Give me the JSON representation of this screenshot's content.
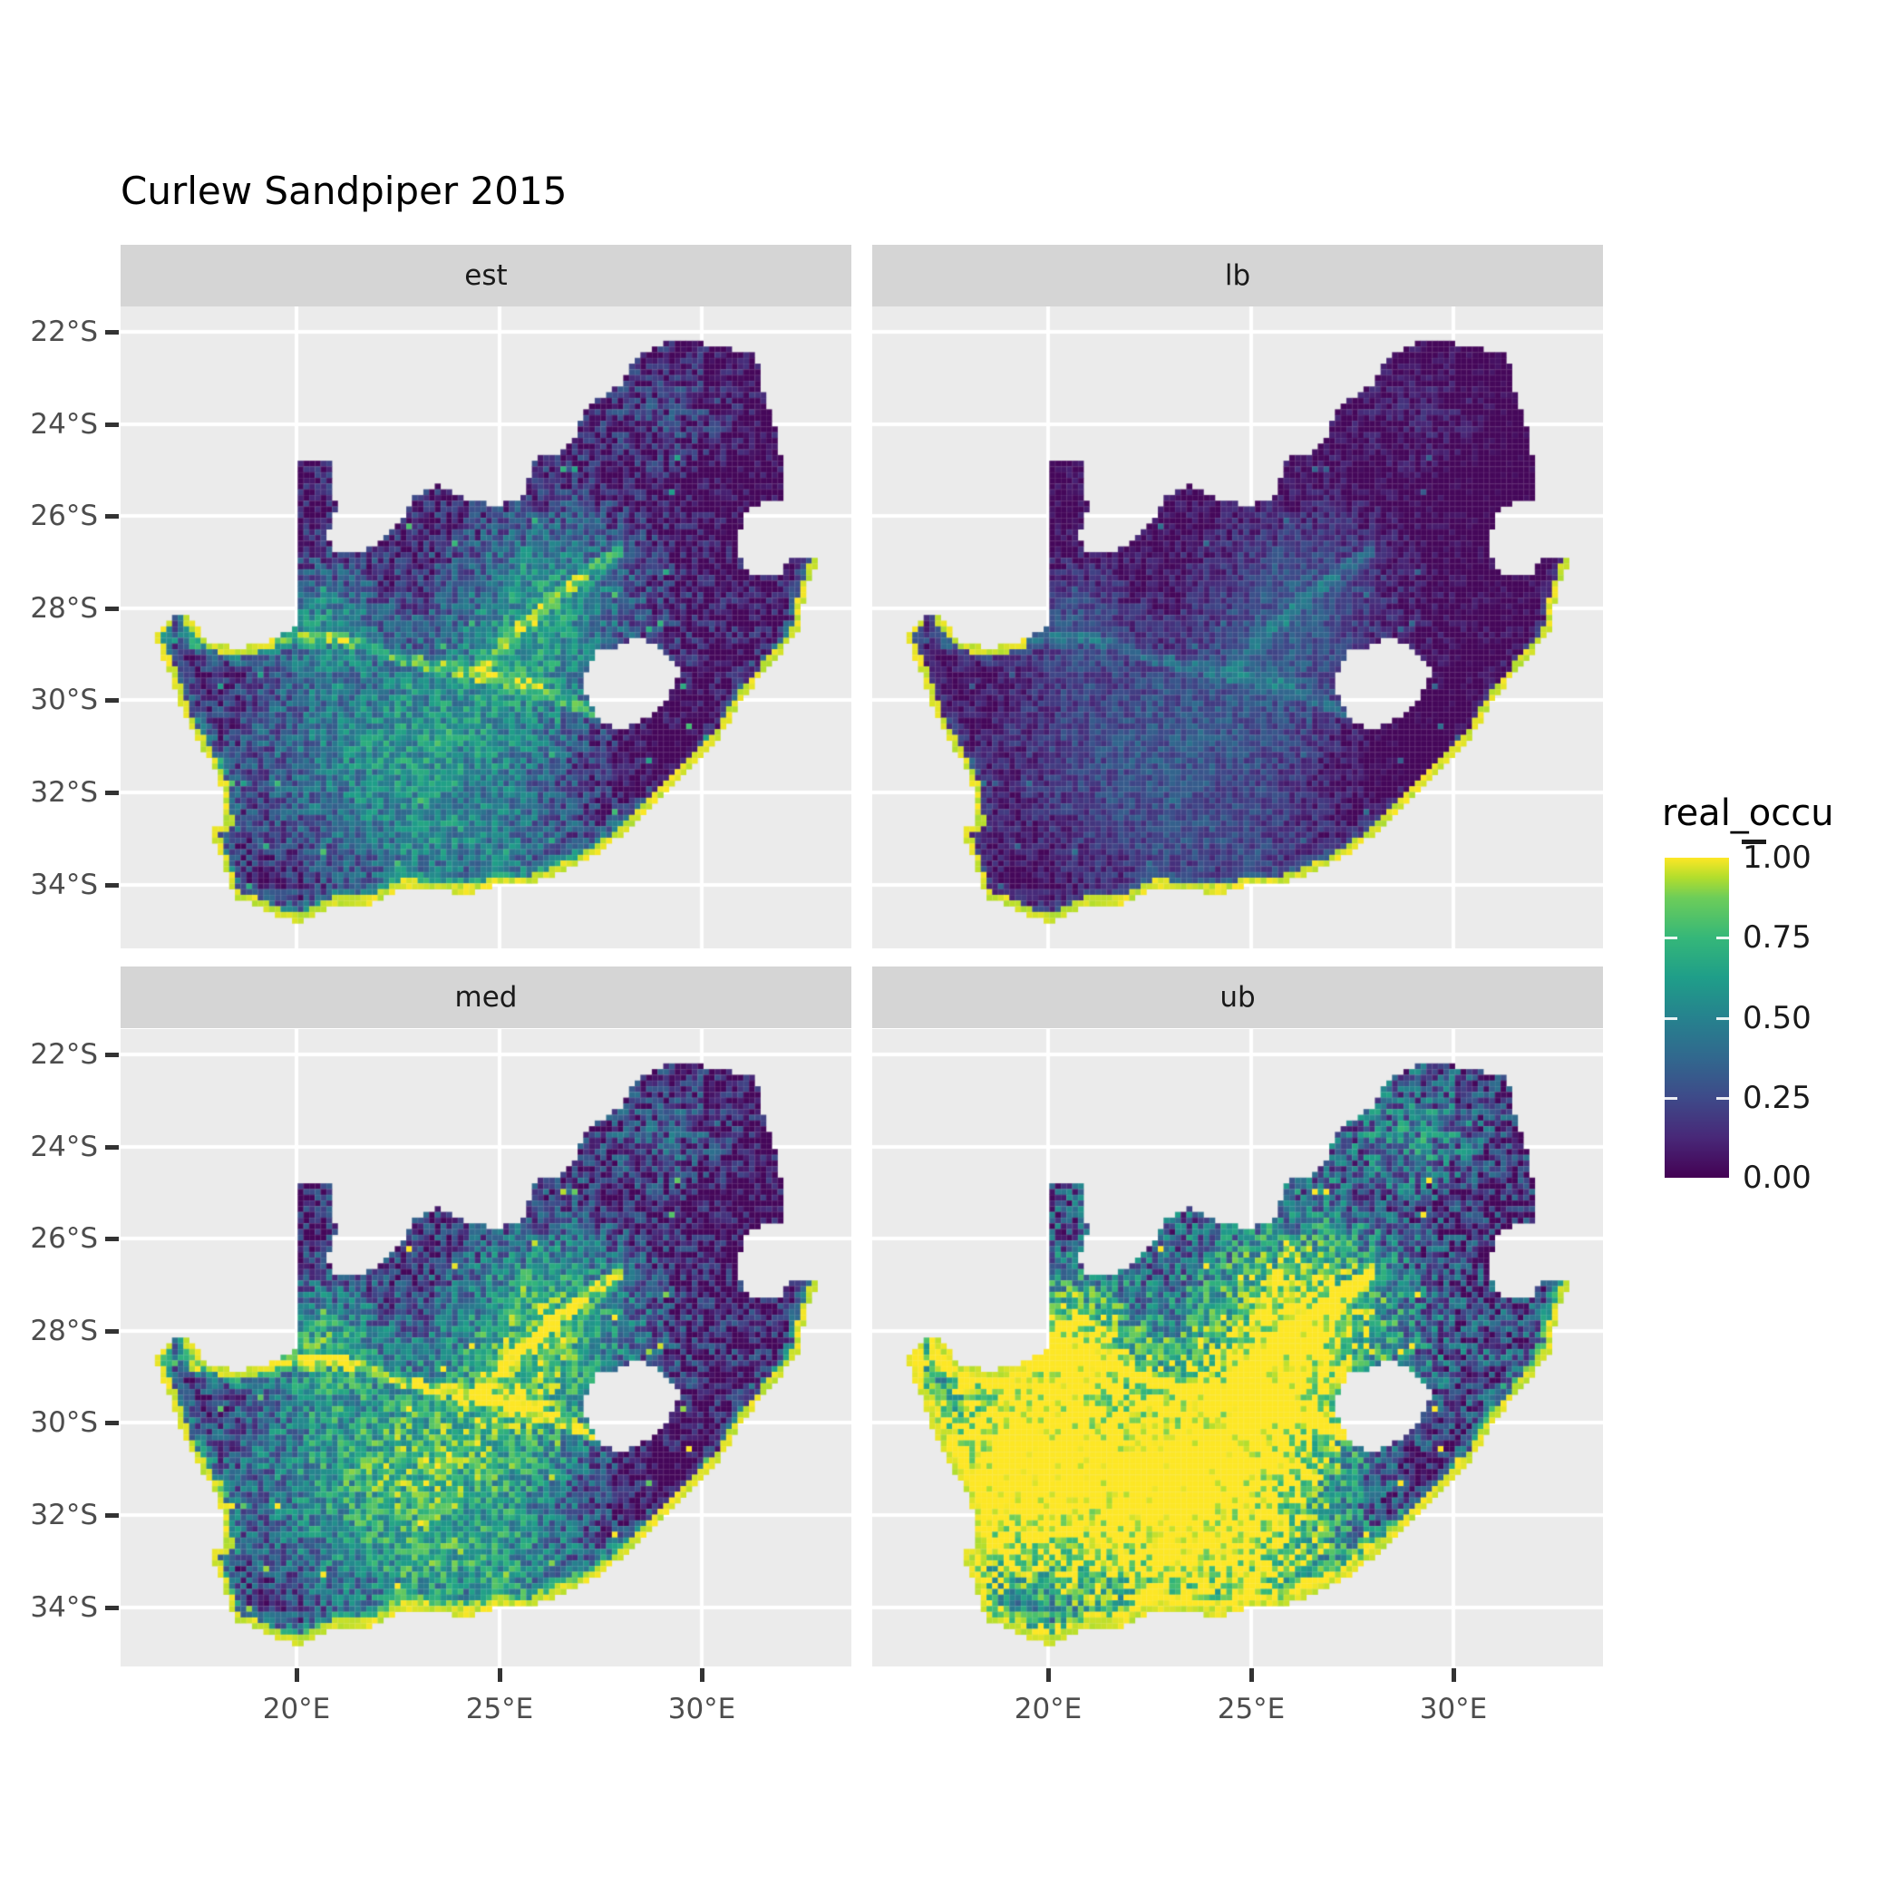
{
  "title": "Curlew Sandpiper 2015",
  "chart_data": {
    "type": "heatmap",
    "subtype": "faceted-raster-map-of-south-africa",
    "title": "Curlew Sandpiper 2015",
    "facets": [
      {
        "label": "est",
        "mult": 0.8,
        "offset": 0.0
      },
      {
        "label": "lb",
        "mult": 0.45,
        "offset": -0.03
      },
      {
        "label": "med",
        "mult": 1.0,
        "offset": 0.04
      },
      {
        "label": "ub",
        "mult": 1.25,
        "offset": 0.17
      }
    ],
    "value_field": "real_occu",
    "value_range": [
      0,
      1
    ],
    "x_axis": {
      "ticks": [
        {
          "label": "20°E",
          "lon": 20
        },
        {
          "label": "25°E",
          "lon": 25
        },
        {
          "label": "30°E",
          "lon": 30
        }
      ]
    },
    "y_axis": {
      "ticks": [
        {
          "label": "22°S",
          "lat": -22
        },
        {
          "label": "24°S",
          "lat": -24
        },
        {
          "label": "26°S",
          "lat": -26
        },
        {
          "label": "28°S",
          "lat": -28
        },
        {
          "label": "30°S",
          "lat": -30
        },
        {
          "label": "32°S",
          "lat": -32
        },
        {
          "label": "34°S",
          "lat": -34
        }
      ]
    },
    "lon_range": [
      15.65,
      33.68
    ],
    "lat_range": [
      -35.4,
      -21.45
    ],
    "legend": {
      "title": "real_occu",
      "labels": [
        "1.00",
        "0.75",
        "0.50",
        "0.25",
        "0.00"
      ],
      "values": [
        1.0,
        0.75,
        0.5,
        0.25,
        0.0
      ]
    },
    "palette": [
      {
        "t": 0.0,
        "c": "#440154"
      },
      {
        "t": 0.125,
        "c": "#482878"
      },
      {
        "t": 0.25,
        "c": "#3E4A89"
      },
      {
        "t": 0.375,
        "c": "#31688E"
      },
      {
        "t": 0.5,
        "c": "#26828E"
      },
      {
        "t": 0.625,
        "c": "#1F9E89"
      },
      {
        "t": 0.75,
        "c": "#35B779"
      },
      {
        "t": 0.875,
        "c": "#6DCD59"
      },
      {
        "t": 0.94,
        "c": "#B4DE2C"
      },
      {
        "t": 1.0,
        "c": "#FDE725"
      }
    ],
    "colors": {
      "panel_bg": "#EBEBEB",
      "strip_bg": "#D5D5D5",
      "grid": "#FFFFFF",
      "axis_text": "#4D4D4D",
      "tick": "#333333",
      "title_text": "#000000"
    },
    "outline": [
      [
        16.45,
        -28.58
      ],
      [
        16.82,
        -28.25
      ],
      [
        17.05,
        -28.05
      ],
      [
        17.35,
        -28.25
      ],
      [
        17.9,
        -28.78
      ],
      [
        18.6,
        -28.87
      ],
      [
        19.3,
        -28.72
      ],
      [
        19.99,
        -28.43
      ],
      [
        19.99,
        -24.77
      ],
      [
        20.35,
        -24.8
      ],
      [
        20.8,
        -24.86
      ],
      [
        20.82,
        -25.45
      ],
      [
        21.0,
        -25.8
      ],
      [
        20.72,
        -26.4
      ],
      [
        20.88,
        -26.78
      ],
      [
        21.3,
        -26.84
      ],
      [
        21.9,
        -26.67
      ],
      [
        22.3,
        -26.35
      ],
      [
        22.65,
        -26.05
      ],
      [
        22.88,
        -25.6
      ],
      [
        23.5,
        -25.32
      ],
      [
        24.2,
        -25.62
      ],
      [
        24.9,
        -25.78
      ],
      [
        25.55,
        -25.62
      ],
      [
        25.9,
        -24.75
      ],
      [
        26.45,
        -24.62
      ],
      [
        26.85,
        -24.28
      ],
      [
        27.15,
        -23.6
      ],
      [
        27.95,
        -23.18
      ],
      [
        28.35,
        -22.6
      ],
      [
        29.05,
        -22.22
      ],
      [
        29.65,
        -22.15
      ],
      [
        30.3,
        -22.35
      ],
      [
        31.3,
        -22.42
      ],
      [
        31.55,
        -23.5
      ],
      [
        31.9,
        -24.3
      ],
      [
        31.97,
        -25.15
      ],
      [
        32.02,
        -25.65
      ],
      [
        31.4,
        -25.74
      ],
      [
        31.1,
        -25.92
      ],
      [
        30.95,
        -26.3
      ],
      [
        30.82,
        -26.82
      ],
      [
        31.15,
        -27.2
      ],
      [
        31.55,
        -27.33
      ],
      [
        31.97,
        -27.31
      ],
      [
        32.13,
        -26.86
      ],
      [
        32.9,
        -26.86
      ],
      [
        32.55,
        -27.6
      ],
      [
        32.38,
        -28.5
      ],
      [
        31.78,
        -29.12
      ],
      [
        31.05,
        -29.9
      ],
      [
        30.3,
        -30.95
      ],
      [
        29.4,
        -31.75
      ],
      [
        28.6,
        -32.4
      ],
      [
        27.9,
        -33.0
      ],
      [
        27.05,
        -33.52
      ],
      [
        26.4,
        -33.76
      ],
      [
        25.65,
        -34.02
      ],
      [
        24.95,
        -34.0
      ],
      [
        24.2,
        -34.2
      ],
      [
        23.4,
        -34.1
      ],
      [
        22.6,
        -34.05
      ],
      [
        21.8,
        -34.42
      ],
      [
        20.95,
        -34.42
      ],
      [
        20.0,
        -34.82
      ],
      [
        19.4,
        -34.62
      ],
      [
        18.82,
        -34.4
      ],
      [
        18.45,
        -34.3
      ],
      [
        18.32,
        -33.92
      ],
      [
        17.88,
        -32.82
      ],
      [
        18.25,
        -32.62
      ],
      [
        18.2,
        -32.0
      ],
      [
        17.85,
        -31.3
      ],
      [
        17.25,
        -30.4
      ],
      [
        16.9,
        -29.5
      ],
      [
        16.45,
        -28.58
      ]
    ],
    "lesotho_hole": [
      [
        27.02,
        -29.6
      ],
      [
        27.35,
        -28.95
      ],
      [
        27.78,
        -28.86
      ],
      [
        28.42,
        -28.6
      ],
      [
        29.08,
        -28.92
      ],
      [
        29.45,
        -29.35
      ],
      [
        29.18,
        -29.95
      ],
      [
        28.7,
        -30.35
      ],
      [
        28.05,
        -30.66
      ],
      [
        27.4,
        -30.42
      ],
      [
        27.02,
        -29.6
      ]
    ],
    "field_blobs": [
      [
        22.8,
        -31.0,
        2.9,
        1.7,
        0.62
      ],
      [
        26.3,
        -27.4,
        1.7,
        1.3,
        0.5
      ],
      [
        20.6,
        -28.2,
        1.0,
        0.9,
        0.45
      ],
      [
        25.8,
        -29.3,
        1.5,
        1.2,
        0.3
      ],
      [
        29.4,
        -23.9,
        1.2,
        0.8,
        0.26
      ],
      [
        24.3,
        -33.4,
        2.6,
        0.9,
        0.3
      ],
      [
        29.6,
        -31.4,
        1.5,
        1.1,
        -0.28
      ],
      [
        30.9,
        -24.8,
        1.6,
        1.6,
        -0.18
      ]
    ],
    "ub_extra_blobs": [
      [
        18.7,
        -30.8,
        1.5,
        2.2,
        0.5
      ],
      [
        24.0,
        -31.5,
        3.0,
        1.5,
        0.18
      ]
    ],
    "rivers": [
      [
        [
          16.6,
          -28.55
        ],
        [
          18.2,
          -28.85
        ],
        [
          19.5,
          -28.6
        ],
        [
          21.0,
          -28.6
        ],
        [
          22.5,
          -29.1
        ],
        [
          24.0,
          -29.35
        ],
        [
          25.7,
          -29.7
        ],
        [
          27.4,
          -30.25
        ]
      ],
      [
        [
          27.9,
          -26.75
        ],
        [
          26.5,
          -27.7
        ],
        [
          25.3,
          -28.6
        ],
        [
          24.6,
          -29.3
        ]
      ]
    ]
  }
}
